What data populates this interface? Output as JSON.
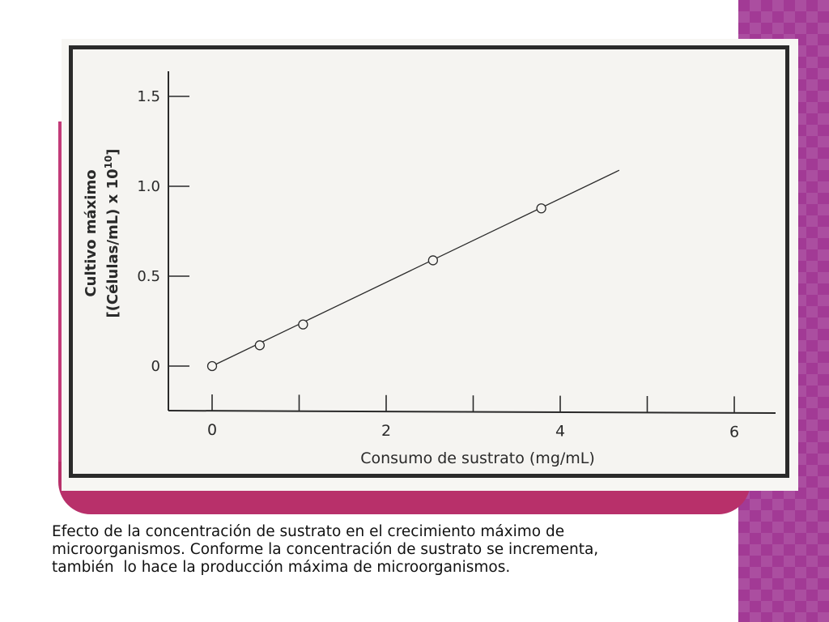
{
  "chart_data": {
    "type": "line",
    "xlabel": "Consumo de sustrato (mg/mL)",
    "ylabel_line1": "Cultivo máximo",
    "ylabel_line2_prefix": "[(Células/mL) x 10",
    "ylabel_line2_sup": "10",
    "ylabel_line2_suffix": "]",
    "x_ticks": [
      0,
      2,
      4,
      6
    ],
    "x_tick_labels": [
      "0",
      "2",
      "4",
      "6"
    ],
    "x_minor_ticks": [
      1,
      3,
      5
    ],
    "y_ticks": [
      0,
      0.5,
      1.0,
      1.5
    ],
    "y_tick_labels": [
      "0",
      "0.5",
      "1.0",
      "1.5"
    ],
    "xlim": [
      -0.5,
      6.5
    ],
    "ylim": [
      -0.2,
      1.7
    ],
    "series": [
      {
        "x": [
          0,
          0.55,
          1.05,
          2.55,
          3.8
        ],
        "y": [
          0,
          0.12,
          0.24,
          0.61,
          0.91
        ],
        "trend_x": [
          0,
          4.7
        ],
        "trend_y": [
          0,
          1.13
        ]
      }
    ],
    "grid": false
  },
  "caption": {
    "line1": "Efecto de la concentración de sustrato en el crecimiento máximo de",
    "line2": "microorganismos. Conforme la concentración de sustrato se incrementa,",
    "line3": "también  lo hace la producción máxima de microorganismos."
  },
  "colors": {
    "accent_magenta": "#b8306a",
    "side_purple": "#a23a95",
    "ink": "#2a2a2a"
  }
}
